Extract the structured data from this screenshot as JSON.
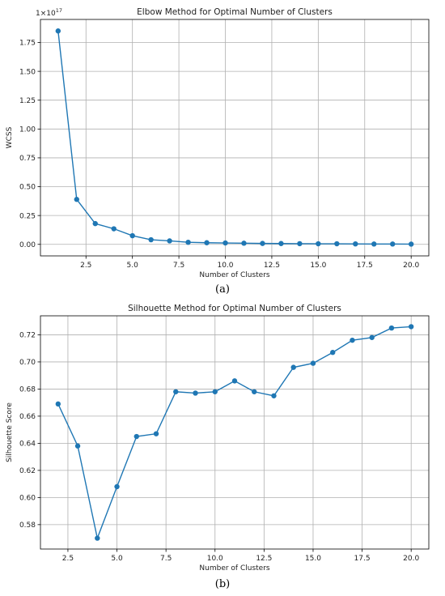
{
  "style": {
    "line_color": "#1f77b4",
    "grid_color": "#b0b0b0",
    "axis_color": "#000000"
  },
  "captions": {
    "a": "(a)",
    "b": "(b)"
  },
  "chart_data": [
    {
      "type": "line",
      "title": "Elbow Method for Optimal Number of Clusters",
      "xlabel": "Number of Clusters",
      "ylabel": "WCSS",
      "y_scale_label": "1e17",
      "grid": true,
      "xlim": [
        0.05,
        20.95
      ],
      "ylim": [
        -0.1,
        1.95
      ],
      "xticks": [
        2.5,
        5.0,
        7.5,
        10.0,
        12.5,
        15.0,
        17.5,
        20.0
      ],
      "xtick_labels": [
        "2.5",
        "5.0",
        "7.5",
        "10.0",
        "12.5",
        "15.0",
        "17.5",
        "20.0"
      ],
      "yticks": [
        0.0,
        0.25,
        0.5,
        0.75,
        1.0,
        1.25,
        1.5,
        1.75
      ],
      "ytick_labels": [
        "0.00",
        "0.25",
        "0.50",
        "0.75",
        "1.00",
        "1.25",
        "1.50",
        "1.75"
      ],
      "x": [
        1,
        2,
        3,
        4,
        5,
        6,
        7,
        8,
        9,
        10,
        11,
        12,
        13,
        14,
        15,
        16,
        17,
        18,
        19,
        20
      ],
      "y": [
        1.85,
        0.39,
        0.18,
        0.135,
        0.075,
        0.04,
        0.03,
        0.018,
        0.014,
        0.012,
        0.01,
        0.008,
        0.007,
        0.006,
        0.005,
        0.005,
        0.004,
        0.003,
        0.003,
        0.002
      ]
    },
    {
      "type": "line",
      "title": "Silhouette Method for Optimal Number of Clusters",
      "xlabel": "Number of Clusters",
      "ylabel": "Silhouette Score",
      "grid": true,
      "xlim": [
        1.1,
        20.9
      ],
      "ylim": [
        0.562,
        0.734
      ],
      "xticks": [
        2.5,
        5.0,
        7.5,
        10.0,
        12.5,
        15.0,
        17.5,
        20.0
      ],
      "xtick_labels": [
        "2.5",
        "5.0",
        "7.5",
        "10.0",
        "12.5",
        "15.0",
        "17.5",
        "20.0"
      ],
      "yticks": [
        0.58,
        0.6,
        0.62,
        0.64,
        0.66,
        0.68,
        0.7,
        0.72
      ],
      "ytick_labels": [
        "0.58",
        "0.60",
        "0.62",
        "0.64",
        "0.66",
        "0.68",
        "0.70",
        "0.72"
      ],
      "x": [
        2,
        3,
        4,
        5,
        6,
        7,
        8,
        9,
        10,
        11,
        12,
        13,
        14,
        15,
        16,
        17,
        18,
        19,
        20
      ],
      "y": [
        0.669,
        0.638,
        0.57,
        0.608,
        0.645,
        0.647,
        0.678,
        0.677,
        0.678,
        0.686,
        0.678,
        0.675,
        0.696,
        0.699,
        0.707,
        0.716,
        0.718,
        0.725,
        0.726
      ]
    }
  ]
}
